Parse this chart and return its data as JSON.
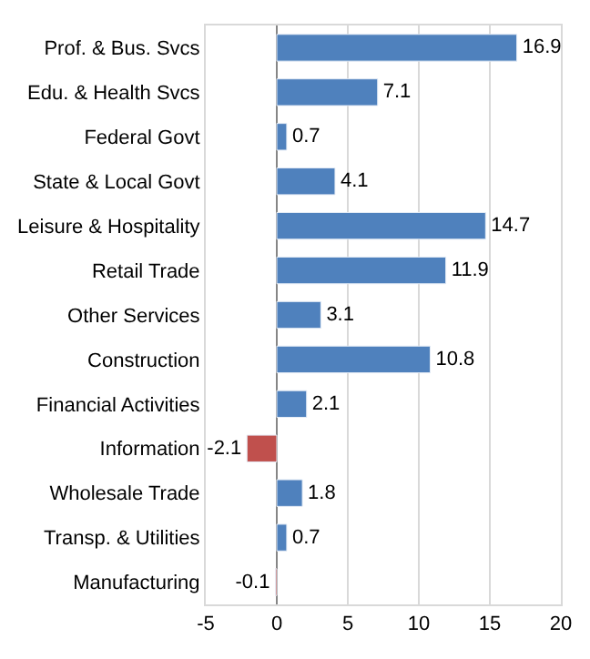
{
  "chart_data": {
    "type": "bar",
    "orientation": "horizontal",
    "categories": [
      "Prof. & Bus. Svcs",
      "Edu. & Health Svcs",
      "Federal Govt",
      "State & Local Govt",
      "Leisure & Hospitality",
      "Retail Trade",
      "Other Services",
      "Construction",
      "Financial Activities",
      "Information",
      "Wholesale Trade",
      "Transp. & Utilities",
      "Manufacturing"
    ],
    "values": [
      16.9,
      7.1,
      0.7,
      4.1,
      14.7,
      11.9,
      3.1,
      10.8,
      2.1,
      -2.1,
      1.8,
      0.7,
      -0.1
    ],
    "colors": [
      "#4f81bd",
      "#4f81bd",
      "#4f81bd",
      "#4f81bd",
      "#4f81bd",
      "#4f81bd",
      "#4f81bd",
      "#4f81bd",
      "#4f81bd",
      "#c0504d",
      "#4f81bd",
      "#4f81bd",
      "#c0504d"
    ],
    "xlim": [
      -5,
      20
    ],
    "xticks": [
      -5,
      0,
      5,
      10,
      15,
      20
    ],
    "grid": "x",
    "data_labels": true
  }
}
